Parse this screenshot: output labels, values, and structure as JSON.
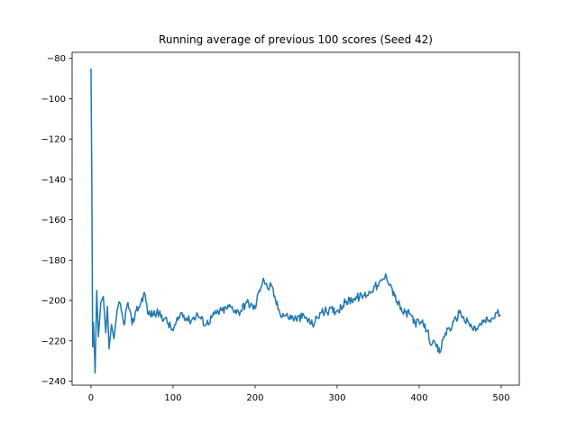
{
  "chart_data": {
    "type": "line",
    "title": "Running average of previous 100 scores (Seed 42)",
    "xlabel": "",
    "ylabel": "",
    "xlim": [
      -23,
      522
    ],
    "ylim": [
      -242,
      -77
    ],
    "xticks": [
      0,
      100,
      200,
      300,
      400,
      500
    ],
    "yticks": [
      -80,
      -100,
      -120,
      -140,
      -160,
      -180,
      -200,
      -220,
      -240
    ],
    "grid": false,
    "series_color": "#1f77b4",
    "series": [
      {
        "keypoints": [
          [
            0,
            -85
          ],
          [
            1,
            -140
          ],
          [
            2,
            -223
          ],
          [
            3,
            -211
          ],
          [
            5,
            -236
          ],
          [
            7,
            -195
          ],
          [
            9,
            -218
          ],
          [
            12,
            -201
          ],
          [
            15,
            -198
          ],
          [
            18,
            -216
          ],
          [
            20,
            -203
          ],
          [
            22,
            -224
          ],
          [
            25,
            -212
          ],
          [
            28,
            -219
          ],
          [
            31,
            -208
          ],
          [
            35,
            -201
          ],
          [
            40,
            -212
          ],
          [
            45,
            -201
          ],
          [
            50,
            -212
          ],
          [
            55,
            -205
          ],
          [
            60,
            -202
          ],
          [
            65,
            -196
          ],
          [
            70,
            -207
          ],
          [
            80,
            -206
          ],
          [
            90,
            -209
          ],
          [
            100,
            -215
          ],
          [
            110,
            -206
          ],
          [
            120,
            -210
          ],
          [
            130,
            -207
          ],
          [
            140,
            -212
          ],
          [
            150,
            -207
          ],
          [
            160,
            -205
          ],
          [
            170,
            -203
          ],
          [
            180,
            -206
          ],
          [
            190,
            -201
          ],
          [
            200,
            -204
          ],
          [
            205,
            -195
          ],
          [
            210,
            -189
          ],
          [
            215,
            -194
          ],
          [
            220,
            -193
          ],
          [
            225,
            -200
          ],
          [
            230,
            -206
          ],
          [
            240,
            -208
          ],
          [
            250,
            -209
          ],
          [
            260,
            -208
          ],
          [
            270,
            -212
          ],
          [
            280,
            -206
          ],
          [
            290,
            -205
          ],
          [
            300,
            -205
          ],
          [
            310,
            -201
          ],
          [
            320,
            -199
          ],
          [
            330,
            -198
          ],
          [
            340,
            -196
          ],
          [
            345,
            -193
          ],
          [
            350,
            -193
          ],
          [
            355,
            -190
          ],
          [
            360,
            -188
          ],
          [
            365,
            -192
          ],
          [
            370,
            -198
          ],
          [
            380,
            -206
          ],
          [
            390,
            -207
          ],
          [
            395,
            -211
          ],
          [
            400,
            -211
          ],
          [
            405,
            -212
          ],
          [
            410,
            -215
          ],
          [
            415,
            -222
          ],
          [
            420,
            -222
          ],
          [
            425,
            -226
          ],
          [
            430,
            -218
          ],
          [
            435,
            -214
          ],
          [
            440,
            -213
          ],
          [
            445,
            -209
          ],
          [
            450,
            -205
          ],
          [
            455,
            -210
          ],
          [
            460,
            -211
          ],
          [
            465,
            -214
          ],
          [
            470,
            -214
          ],
          [
            475,
            -212
          ],
          [
            480,
            -210
          ],
          [
            485,
            -210
          ],
          [
            490,
            -209
          ],
          [
            495,
            -206
          ],
          [
            499,
            -207
          ]
        ],
        "jitter_amplitude": 2.2
      }
    ]
  }
}
